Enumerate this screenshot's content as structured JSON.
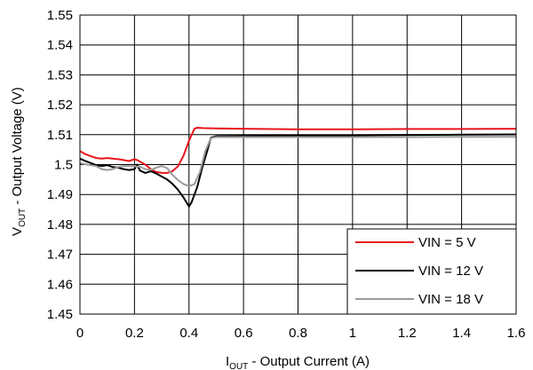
{
  "chart_data": {
    "type": "line",
    "xlabel": {
      "main": "I",
      "sub": "OUT",
      "rest": " - Output Current (A)"
    },
    "ylabel": {
      "main": "V",
      "sub": "OUT",
      "rest": " - Output Voltage (V)"
    },
    "xlim": [
      0,
      1.6
    ],
    "ylim": [
      1.45,
      1.55
    ],
    "xticks": [
      "0",
      "0.2",
      "0.4",
      "0.6",
      "0.8",
      "1",
      "1.2",
      "1.4",
      "1.6"
    ],
    "yticks": [
      "1.45",
      "1.46",
      "1.47",
      "1.48",
      "1.49",
      "1.5",
      "1.51",
      "1.52",
      "1.53",
      "1.54",
      "1.55"
    ],
    "grid": true,
    "legend_position": "bottom-right",
    "series": [
      {
        "name": "VIN = 5 V",
        "color": "#e8141b",
        "x": [
          0,
          0.02,
          0.04,
          0.06,
          0.08,
          0.1,
          0.12,
          0.14,
          0.16,
          0.18,
          0.2,
          0.21,
          0.22,
          0.24,
          0.26,
          0.28,
          0.3,
          0.32,
          0.34,
          0.36,
          0.38,
          0.4,
          0.42,
          0.43,
          0.45,
          0.5,
          0.6,
          0.8,
          1.0,
          1.2,
          1.4,
          1.6
        ],
        "y": [
          1.5045,
          1.5035,
          1.5028,
          1.5022,
          1.502,
          1.5022,
          1.502,
          1.5018,
          1.5015,
          1.5012,
          1.5018,
          1.5015,
          1.501,
          1.5,
          1.4985,
          1.4975,
          1.4972,
          1.4972,
          1.4978,
          1.4995,
          1.503,
          1.508,
          1.512,
          1.5123,
          1.5122,
          1.5121,
          1.512,
          1.5118,
          1.5118,
          1.5119,
          1.5119,
          1.512
        ]
      },
      {
        "name": "VIN = 12 V",
        "color": "#000000",
        "x": [
          0,
          0.02,
          0.04,
          0.06,
          0.08,
          0.1,
          0.12,
          0.14,
          0.16,
          0.18,
          0.2,
          0.21,
          0.22,
          0.24,
          0.26,
          0.28,
          0.3,
          0.32,
          0.34,
          0.36,
          0.38,
          0.4,
          0.41,
          0.43,
          0.45,
          0.47,
          0.48,
          0.5,
          0.6,
          0.8,
          1.0,
          1.2,
          1.4,
          1.6
        ],
        "y": [
          1.502,
          1.5012,
          1.5005,
          1.4998,
          1.4995,
          1.4998,
          1.4992,
          1.499,
          1.4985,
          1.4982,
          1.4985,
          1.5,
          1.498,
          1.4972,
          1.4978,
          1.497,
          1.496,
          1.495,
          1.4935,
          1.4915,
          1.489,
          1.486,
          1.4875,
          1.4925,
          1.4995,
          1.5055,
          1.509,
          1.5095,
          1.5096,
          1.5097,
          1.5098,
          1.5099,
          1.51,
          1.5101
        ]
      },
      {
        "name": "VIN = 18 V",
        "color": "#9a9a9a",
        "x": [
          0,
          0.02,
          0.04,
          0.06,
          0.08,
          0.1,
          0.12,
          0.14,
          0.16,
          0.18,
          0.2,
          0.22,
          0.24,
          0.26,
          0.28,
          0.3,
          0.32,
          0.34,
          0.36,
          0.38,
          0.4,
          0.42,
          0.44,
          0.46,
          0.48,
          0.5,
          0.6,
          0.8,
          1.0,
          1.2,
          1.4,
          1.6
        ],
        "y": [
          1.5005,
          1.5001,
          1.4998,
          1.4995,
          1.4985,
          1.4982,
          1.4985,
          1.4992,
          1.4995,
          1.4995,
          1.4994,
          1.4993,
          1.4985,
          1.4982,
          1.499,
          1.4995,
          1.4988,
          1.4965,
          1.4948,
          1.4935,
          1.4928,
          1.4935,
          1.4975,
          1.5045,
          1.5088,
          1.5092,
          1.5092,
          1.5092,
          1.5092,
          1.5092,
          1.5093,
          1.5093
        ]
      }
    ]
  }
}
